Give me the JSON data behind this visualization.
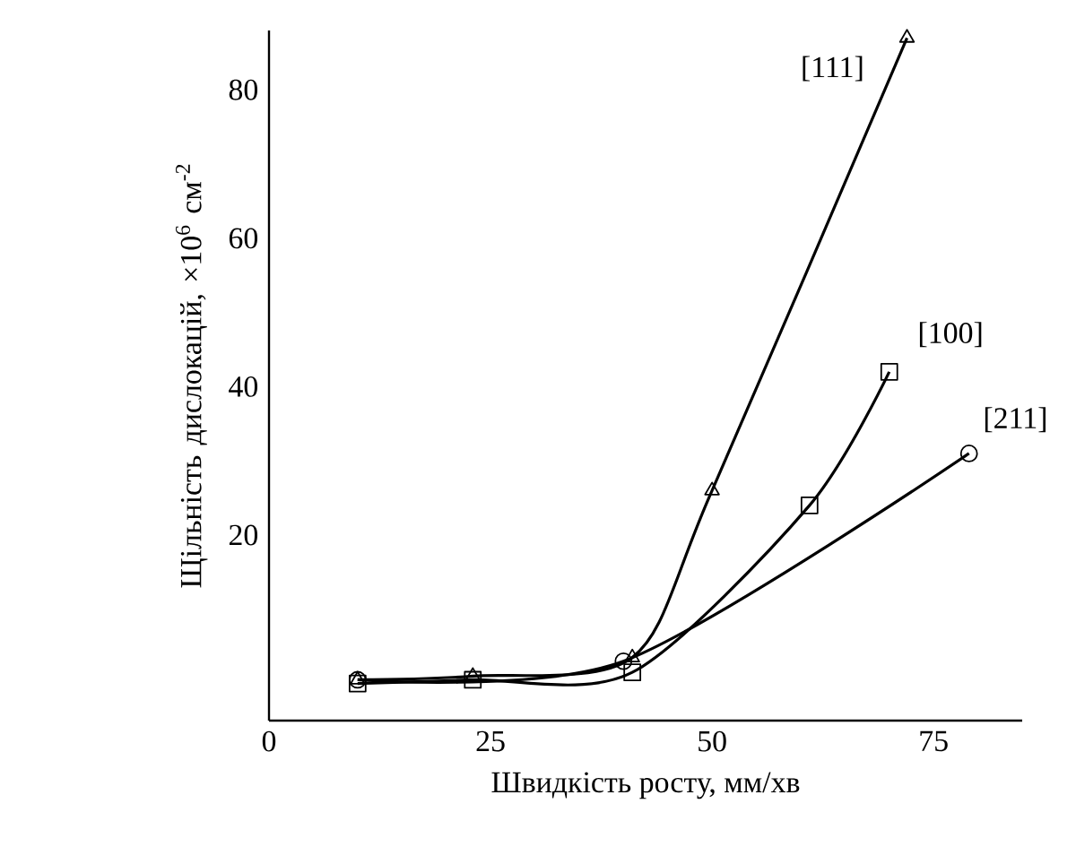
{
  "chart_data": {
    "type": "line",
    "xlabel": "Швидкість росту, мм/хв",
    "ylabel": "Щільність дислокацій, ×10$^{6}$ см$^{-2}$",
    "xlim": [
      0,
      85
    ],
    "ylim": [
      -5,
      88
    ],
    "xticks": [
      0,
      25,
      50,
      75
    ],
    "yticks": [
      20,
      40,
      60,
      80
    ],
    "series": [
      {
        "name": "[111]",
        "color": "#000000",
        "marker": "triangle",
        "x": [
          10,
          23,
          41,
          50,
          72
        ],
        "values": [
          0.5,
          1,
          3.5,
          26,
          87
        ]
      },
      {
        "name": "[100]",
        "color": "#000000",
        "marker": "square",
        "x": [
          10,
          23,
          41,
          61,
          70
        ],
        "values": [
          0,
          0.5,
          1.5,
          24,
          42
        ]
      },
      {
        "name": "[211]",
        "color": "#000000",
        "marker": "circle",
        "x": [
          10,
          23,
          40,
          79
        ],
        "values": [
          0.5,
          null,
          3,
          31
        ]
      }
    ]
  }
}
